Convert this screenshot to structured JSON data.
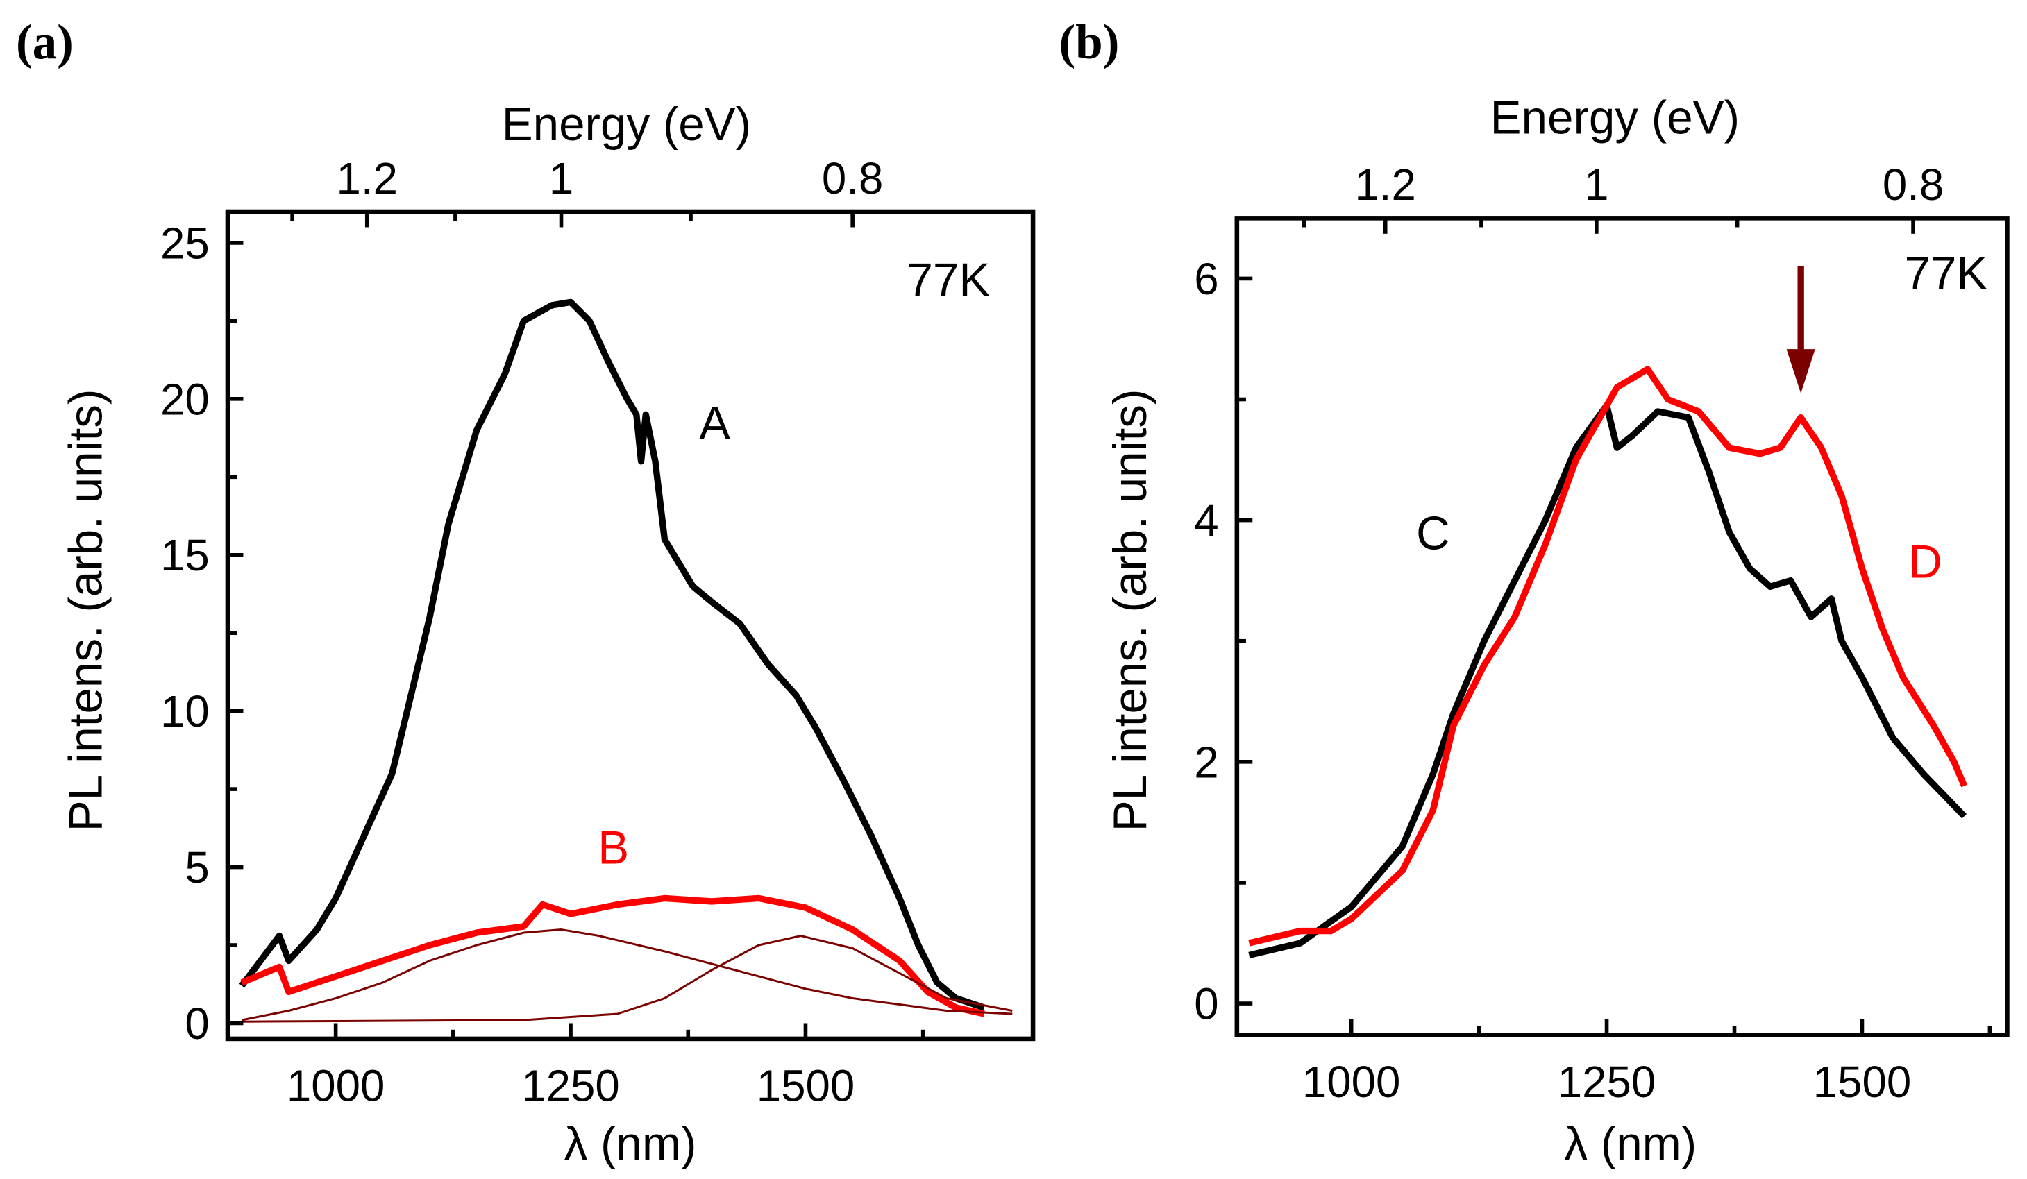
{
  "chart_data": [
    {
      "panel_label": "(a)",
      "type": "line",
      "xlabel": "λ (nm)",
      "ylabel": "PL intens. (arb. units)",
      "top_xlabel": "Energy (eV)",
      "xlim": [
        885,
        1742
      ],
      "ylim": [
        -0.5,
        26
      ],
      "x_ticks": [
        1000,
        1250,
        1500
      ],
      "x_minor_ticks": [
        1125,
        1375,
        1625
      ],
      "y_ticks": [
        0,
        5,
        10,
        15,
        20,
        25
      ],
      "y_minor_ticks": [
        2.5,
        7.5,
        12.5,
        17.5,
        22.5
      ],
      "top_ticks_eV": [
        "1.2",
        "1",
        "0.8"
      ],
      "top_minor_ticks_eV": [
        1.3,
        1.1,
        0.9
      ],
      "annotation": "77K",
      "grid": false,
      "series": [
        {
          "name": "A",
          "color": "#000000",
          "role": "data",
          "x": [
            900,
            940,
            950,
            980,
            1000,
            1030,
            1060,
            1080,
            1100,
            1120,
            1150,
            1180,
            1200,
            1230,
            1250,
            1270,
            1290,
            1310,
            1320,
            1325,
            1330,
            1340,
            1350,
            1360,
            1380,
            1400,
            1430,
            1460,
            1490,
            1510,
            1540,
            1570,
            1600,
            1620,
            1640,
            1660,
            1690
          ],
          "y": [
            1.2,
            2.8,
            2.0,
            3.0,
            4.0,
            6.0,
            8.0,
            10.5,
            13.0,
            16.0,
            19.0,
            20.8,
            22.5,
            23.0,
            23.1,
            22.5,
            21.2,
            20.0,
            19.5,
            18.0,
            19.5,
            18.0,
            15.5,
            15.0,
            14.0,
            13.5,
            12.8,
            11.5,
            10.5,
            9.5,
            7.8,
            6.0,
            4.0,
            2.5,
            1.3,
            0.8,
            0.5
          ]
        },
        {
          "name": "B",
          "color": "#ff0000",
          "role": "data",
          "x": [
            900,
            940,
            950,
            1000,
            1050,
            1100,
            1150,
            1200,
            1220,
            1250,
            1300,
            1350,
            1400,
            1450,
            1500,
            1550,
            1600,
            1630,
            1660,
            1690
          ],
          "y": [
            1.3,
            1.8,
            1.0,
            1.5,
            2.0,
            2.5,
            2.9,
            3.1,
            3.8,
            3.5,
            3.8,
            4.0,
            3.9,
            4.0,
            3.7,
            3.0,
            2.0,
            1.0,
            0.5,
            0.3
          ]
        },
        {
          "color": "#7b0000",
          "role": "fit",
          "x": [
            900,
            950,
            1000,
            1050,
            1100,
            1150,
            1200,
            1240,
            1280,
            1350,
            1400,
            1450,
            1500,
            1550,
            1600,
            1650,
            1720
          ],
          "y": [
            0.1,
            0.4,
            0.8,
            1.3,
            2.0,
            2.5,
            2.9,
            3.0,
            2.8,
            2.3,
            1.9,
            1.5,
            1.1,
            0.8,
            0.6,
            0.4,
            0.3
          ]
        },
        {
          "color": "#7b0000",
          "role": "fit",
          "x": [
            900,
            1200,
            1300,
            1350,
            1400,
            1450,
            1495,
            1550,
            1600,
            1650,
            1720
          ],
          "y": [
            0.05,
            0.1,
            0.3,
            0.8,
            1.7,
            2.5,
            2.8,
            2.4,
            1.6,
            0.8,
            0.4
          ]
        }
      ]
    },
    {
      "panel_label": "(b)",
      "type": "line",
      "xlabel": "λ (nm)",
      "ylabel": "PL intens. (arb. units)",
      "top_xlabel": "Energy (eV)",
      "xlim": [
        888,
        1642
      ],
      "ylim": [
        -0.26,
        6.5
      ],
      "x_ticks": [
        1000,
        1250,
        1500
      ],
      "x_minor_ticks": [
        1125,
        1375,
        1625
      ],
      "y_ticks": [
        0,
        2,
        4,
        6
      ],
      "y_minor_ticks": [
        1,
        3,
        5
      ],
      "top_ticks_eV": [
        "1.2",
        "1",
        "0.8"
      ],
      "top_minor_ticks_eV": [
        1.3,
        1.1,
        0.9
      ],
      "annotation": "77K",
      "arrow": {
        "x": 1440,
        "y_from": 6.1,
        "y_to": 5.05,
        "color": "#7b0000"
      },
      "grid": false,
      "series": [
        {
          "name": "C",
          "color": "#000000",
          "role": "data",
          "x": [
            900,
            950,
            1000,
            1050,
            1080,
            1100,
            1130,
            1160,
            1190,
            1220,
            1250,
            1260,
            1275,
            1300,
            1330,
            1350,
            1370,
            1390,
            1410,
            1430,
            1450,
            1470,
            1480,
            1500,
            1530,
            1560,
            1600
          ],
          "y": [
            0.4,
            0.5,
            0.8,
            1.3,
            1.9,
            2.4,
            3.0,
            3.5,
            4.0,
            4.6,
            4.95,
            4.6,
            4.7,
            4.9,
            4.85,
            4.4,
            3.9,
            3.6,
            3.45,
            3.5,
            3.2,
            3.35,
            3.0,
            2.7,
            2.2,
            1.9,
            1.55
          ]
        },
        {
          "name": "D",
          "color": "#ff0000",
          "role": "data",
          "x": [
            900,
            950,
            980,
            1000,
            1050,
            1080,
            1100,
            1130,
            1160,
            1190,
            1220,
            1260,
            1290,
            1310,
            1340,
            1370,
            1400,
            1420,
            1440,
            1460,
            1480,
            1500,
            1520,
            1540,
            1570,
            1590,
            1600
          ],
          "y": [
            0.5,
            0.6,
            0.6,
            0.7,
            1.1,
            1.6,
            2.3,
            2.8,
            3.2,
            3.8,
            4.5,
            5.1,
            5.25,
            5.0,
            4.9,
            4.6,
            4.55,
            4.6,
            4.85,
            4.6,
            4.2,
            3.6,
            3.1,
            2.7,
            2.3,
            2.0,
            1.8
          ]
        }
      ]
    }
  ]
}
